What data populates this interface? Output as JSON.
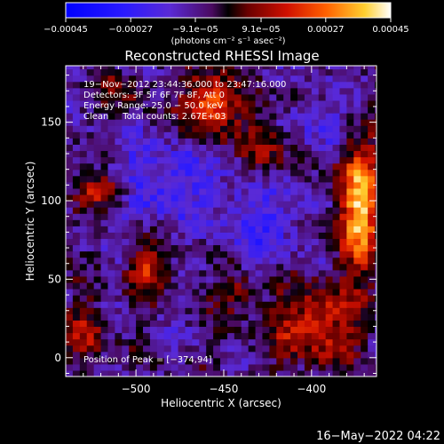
{
  "chart_data": {
    "type": "heatmap",
    "title": "Reconstructed RHESSI Image",
    "xlabel": "Heliocentric X (arcsec)",
    "ylabel": "Heliocentric Y (arcsec)",
    "xlim": [
      -540,
      -363
    ],
    "ylim": [
      -12,
      186
    ],
    "x_ticks": [
      {
        "value": -500,
        "label": "−500"
      },
      {
        "value": -450,
        "label": "−450"
      },
      {
        "value": -400,
        "label": "−400"
      }
    ],
    "y_ticks": [
      {
        "value": 0,
        "label": "0"
      },
      {
        "value": 50,
        "label": "50"
      },
      {
        "value": 100,
        "label": "100"
      },
      {
        "value": 150,
        "label": "150"
      }
    ],
    "colorbar": {
      "range": [
        -0.00045,
        0.00045
      ],
      "unit_label": "(photons cm⁻² s⁻¹ asec⁻²)",
      "ticks": [
        {
          "value": -0.00045,
          "label": "−0.00045"
        },
        {
          "value": -0.00027,
          "label": "−0.00027"
        },
        {
          "value": -9.1e-05,
          "label": "−9.1e−05"
        },
        {
          "value": 9.1e-05,
          "label": "9.1e−05"
        },
        {
          "value": 0.00027,
          "label": "0.00027"
        },
        {
          "value": 0.00045,
          "label": "0.00045"
        }
      ]
    },
    "annotations": [
      "19−Nov−2012 23:44:36.000 to 23:47:16.000",
      "Detectors: 3F 5F 6F 7F 8F, Att 0",
      "Energy Range: 25.0 − 50.0 keV",
      "Clean     Total counts: 2.67E+03"
    ],
    "peak_label": "Position of Peak = [−374,94]",
    "peak": {
      "x": -374,
      "y": 94
    },
    "bright_regions": [
      {
        "x": -375,
        "y": 95,
        "rx": 12,
        "ry": 40,
        "value": 0.00045
      },
      {
        "x": -460,
        "y": 160,
        "rx": 15,
        "ry": 18,
        "value": 0.00036
      },
      {
        "x": -520,
        "y": 105,
        "rx": 15,
        "ry": 10,
        "value": 0.0003
      },
      {
        "x": -495,
        "y": 55,
        "rx": 12,
        "ry": 15,
        "value": 0.00024
      },
      {
        "x": -400,
        "y": 20,
        "rx": 25,
        "ry": 25,
        "value": 0.00026
      },
      {
        "x": -430,
        "y": 130,
        "rx": 12,
        "ry": 25,
        "value": 0.0002
      },
      {
        "x": -530,
        "y": 15,
        "rx": 10,
        "ry": 20,
        "value": 0.00018
      },
      {
        "x": -445,
        "y": 40,
        "rx": 12,
        "ry": 12,
        "value": 0.00016
      },
      {
        "x": -510,
        "y": 170,
        "rx": 15,
        "ry": 10,
        "value": 0.00015
      }
    ],
    "dim_regions": [
      {
        "x": -490,
        "y": 110,
        "rx": 30,
        "ry": 25,
        "value": -0.00018
      },
      {
        "x": -430,
        "y": 90,
        "rx": 25,
        "ry": 30,
        "value": -0.00016
      },
      {
        "x": -395,
        "y": 150,
        "rx": 18,
        "ry": 18,
        "value": -0.00012
      }
    ]
  },
  "timestamp": "16−May−2022 04:22"
}
